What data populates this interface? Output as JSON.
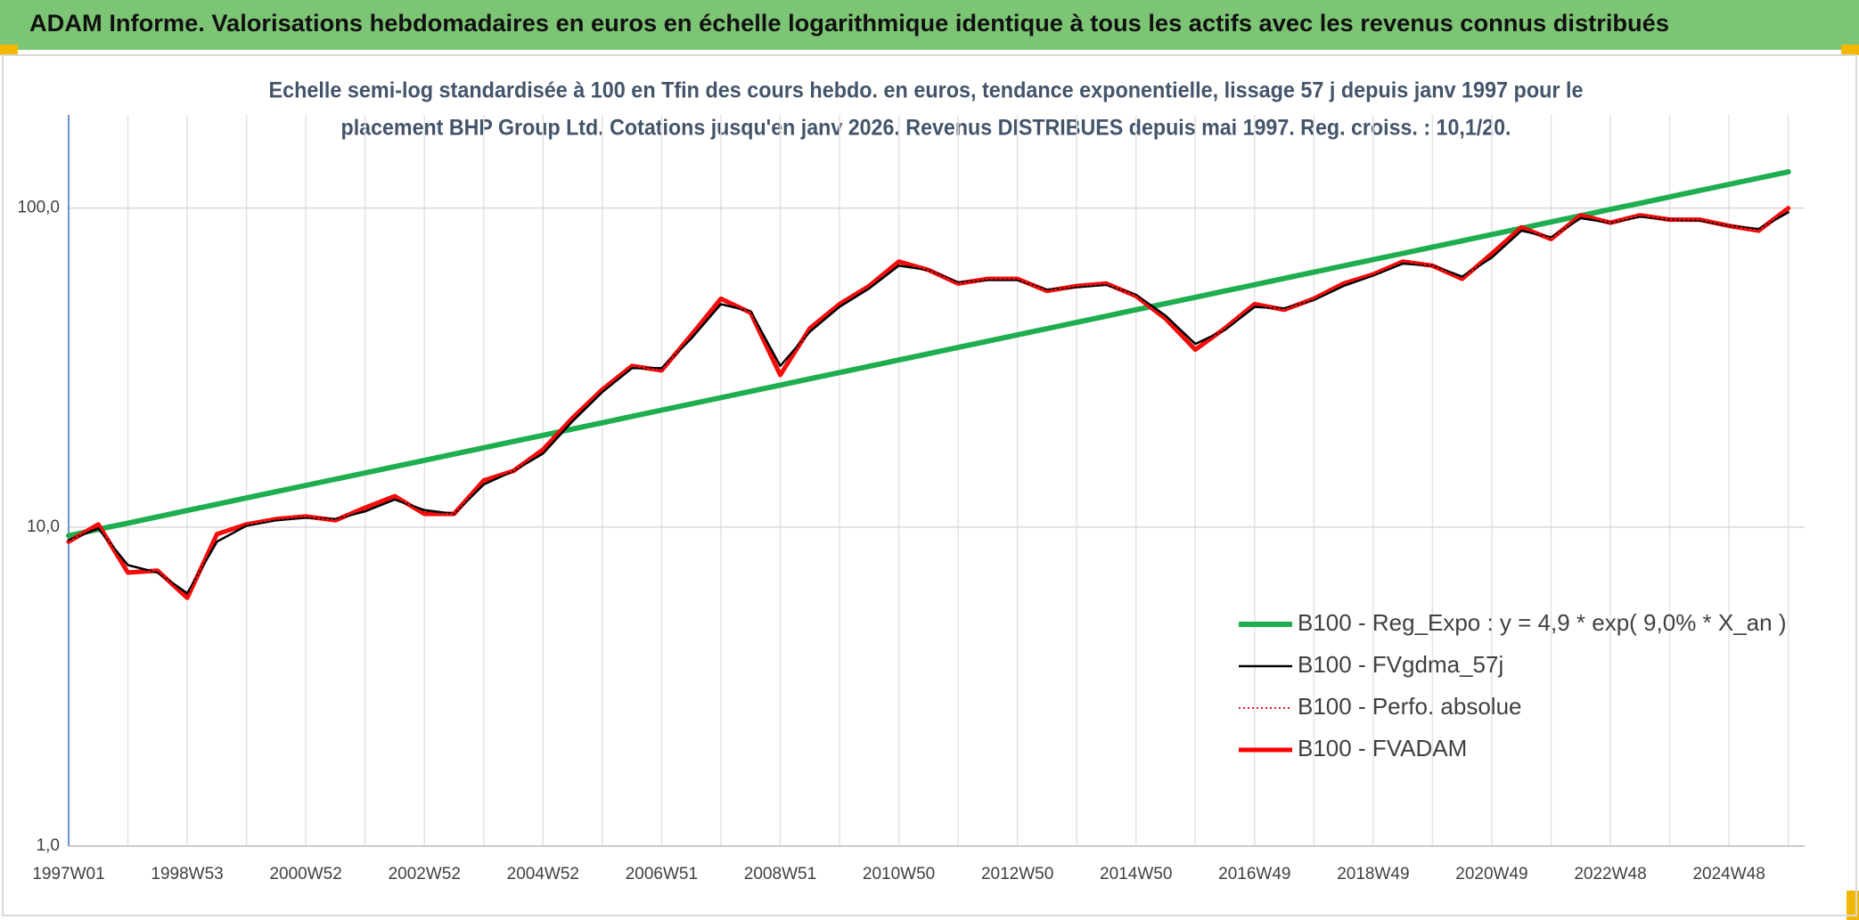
{
  "chart_data": {
    "type": "line",
    "title": "ADAM Informe. Valorisations hebdomadaires en euros en échelle logarithmique identique à tous les actifs avec les revenus connus distribués",
    "subtitle": [
      "Echelle semi-log standardisée à 100 en Tfin des cours hebdo. en euros, tendance exponentielle, lissage 57 j depuis janv 1997 pour le",
      "placement BHP Group Ltd. Cotations jusqu'en janv 2026. Revenus DISTRIBUES depuis mai 1997. Reg. croiss. : 10,1/20."
    ],
    "log_scale": true,
    "grid": true,
    "legend": "lower right",
    "ylim": [
      1,
      196
    ],
    "yticks": [
      {
        "value": 1,
        "label": "1,0"
      },
      {
        "value": 10,
        "label": "10,0"
      },
      {
        "value": 100,
        "label": "100,0"
      }
    ],
    "categories": [
      "1997W01",
      null,
      null,
      null,
      "1998W53",
      null,
      null,
      null,
      "2000W52",
      null,
      null,
      null,
      "2002W52",
      null,
      null,
      null,
      "2004W52",
      null,
      null,
      null,
      "2006W51",
      null,
      null,
      null,
      "2008W51",
      null,
      null,
      null,
      "2010W50",
      null,
      null,
      null,
      "2012W50",
      null,
      null,
      null,
      "2014W50",
      null,
      null,
      null,
      "2016W49",
      null,
      null,
      null,
      "2018W49",
      null,
      null,
      null,
      "2020W49",
      null,
      null,
      null,
      "2022W48",
      null,
      null,
      null,
      "2024W48",
      null,
      null
    ],
    "series": [
      {
        "name": "B100 - Reg_Expo : y = 4,9 * exp( 9,0% *  X_an )",
        "color": "#1fae4f",
        "style": "solid",
        "width": 6,
        "values": [
          9.4,
          9.84,
          10.29,
          10.77,
          11.27,
          11.79,
          12.34,
          12.91,
          13.51,
          14.14,
          14.79,
          15.48,
          16.19,
          16.94,
          17.72,
          18.55,
          19.4,
          20.3,
          21.24,
          22.23,
          23.26,
          24.34,
          25.46,
          26.64,
          27.88,
          29.17,
          30.52,
          31.93,
          33.41,
          34.96,
          36.58,
          38.27,
          40.05,
          41.9,
          43.84,
          45.87,
          48.0,
          50.22,
          52.55,
          54.98,
          57.53,
          60.19,
          62.98,
          65.9,
          68.95,
          72.14,
          75.49,
          78.98,
          82.65,
          86.47,
          90.48,
          94.67,
          99.06,
          103.6,
          108.4,
          113.5,
          118.7,
          124.2,
          130.0
        ]
      },
      {
        "name": "B100 - FVgdma_57j",
        "color": "#000000",
        "style": "solid",
        "width": 2.5,
        "values": [
          9.1,
          9.9,
          7.6,
          7.2,
          6.2,
          9.0,
          10.1,
          10.5,
          10.7,
          10.6,
          11.2,
          12.2,
          11.3,
          11.0,
          13.6,
          15.0,
          17.0,
          21.5,
          26.5,
          31.5,
          31.5,
          39.0,
          50.0,
          47.5,
          32.0,
          41.0,
          49.0,
          56.0,
          66.0,
          64.0,
          58.5,
          59.5,
          59.5,
          55.5,
          56.5,
          57.5,
          53.5,
          46.0,
          37.5,
          41.5,
          49.0,
          48.5,
          51.5,
          57.0,
          61.5,
          67.0,
          66.0,
          61.0,
          70.0,
          85.0,
          81.0,
          93.0,
          90.0,
          94.0,
          92.0,
          91.5,
          88.0,
          86.0,
          97.0
        ]
      },
      {
        "name": "B100 - Perfo. absolue",
        "color": "#e01b1b",
        "style": "dotted",
        "width": 2,
        "values": [
          9.0,
          10.2,
          7.2,
          7.3,
          6.0,
          9.5,
          10.2,
          10.6,
          10.8,
          10.5,
          11.5,
          12.5,
          11.0,
          11.0,
          14.0,
          15.0,
          17.5,
          22.0,
          27.0,
          32.0,
          31.0,
          40.0,
          52.0,
          47.0,
          30.0,
          42.0,
          50.0,
          57.0,
          68.0,
          64.0,
          58.0,
          60.0,
          60.0,
          55.0,
          57.0,
          58.0,
          53.0,
          45.0,
          36.0,
          42.0,
          50.0,
          48.0,
          52.0,
          58.0,
          62.0,
          68.0,
          66.0,
          60.0,
          72.0,
          87.0,
          80.0,
          95.0,
          90.0,
          95.0,
          92.0,
          92.0,
          88.0,
          85.0,
          100.0
        ]
      },
      {
        "name": "B100 - FVADAM",
        "color": "#ff0000",
        "style": "solid",
        "width": 5,
        "values": [
          9.0,
          10.2,
          7.2,
          7.3,
          6.0,
          9.5,
          10.2,
          10.6,
          10.8,
          10.5,
          11.5,
          12.5,
          11.0,
          11.0,
          14.0,
          15.0,
          17.5,
          22.0,
          27.0,
          32.0,
          31.0,
          40.0,
          52.0,
          47.0,
          30.0,
          42.0,
          50.0,
          57.0,
          68.0,
          64.0,
          58.0,
          60.0,
          60.0,
          55.0,
          57.0,
          58.0,
          53.0,
          45.0,
          36.0,
          42.0,
          50.0,
          48.0,
          52.0,
          58.0,
          62.0,
          68.0,
          66.0,
          60.0,
          72.0,
          87.0,
          80.0,
          95.0,
          90.0,
          95.0,
          92.0,
          92.0,
          88.0,
          85.0,
          100.0
        ]
      }
    ]
  }
}
